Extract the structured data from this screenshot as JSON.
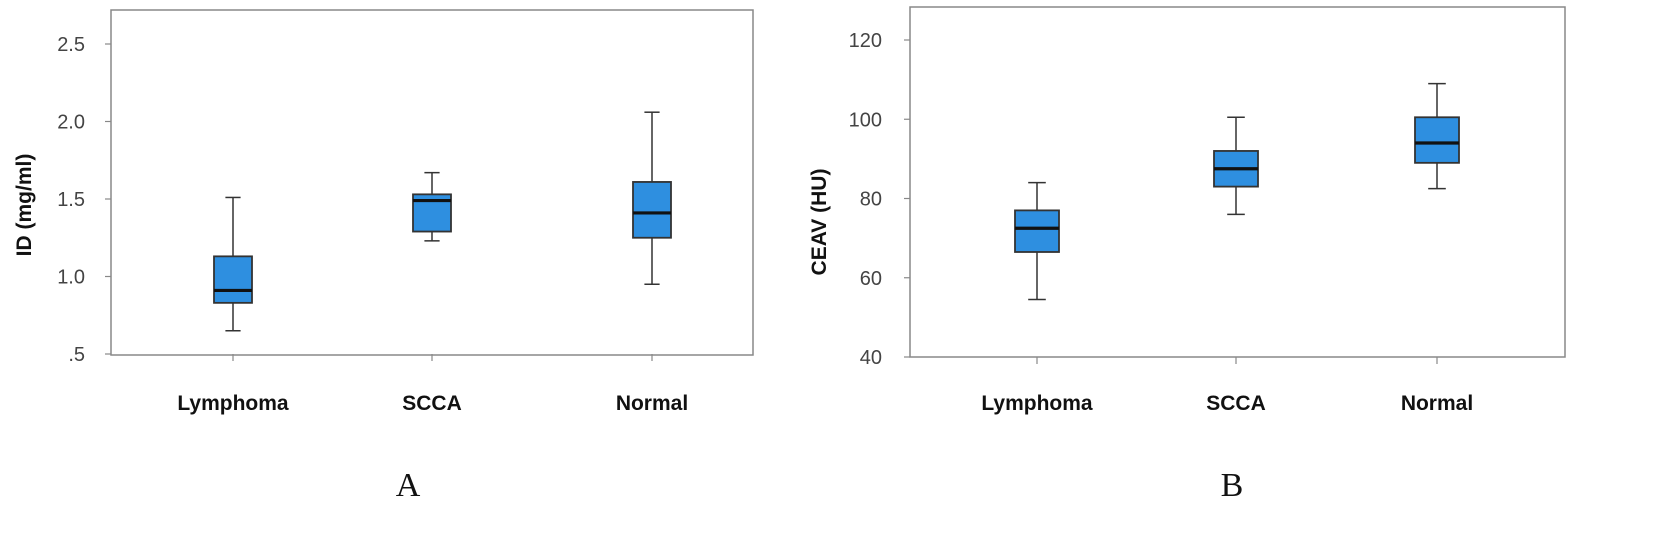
{
  "chart_data": [
    {
      "type": "boxplot",
      "panel_label": "A",
      "title": "",
      "xlabel": "",
      "ylabel": "ID (mg/ml)",
      "ylim": [
        0.5,
        2.7
      ],
      "yticks": [
        0.5,
        1.0,
        1.5,
        2.0,
        2.5
      ],
      "ytick_labels": [
        ".5",
        "1.0",
        "1.5",
        "2.0",
        "2.5"
      ],
      "categories": [
        "Lymphoma",
        "SCCA",
        "Normal"
      ],
      "boxes": [
        {
          "category": "Lymphoma",
          "min": 0.65,
          "q1": 0.83,
          "median": 0.91,
          "q3": 1.13,
          "max": 1.51
        },
        {
          "category": "SCCA",
          "min": 1.23,
          "q1": 1.29,
          "median": 1.49,
          "q3": 1.53,
          "max": 1.67
        },
        {
          "category": "Normal",
          "min": 0.95,
          "q1": 1.25,
          "median": 1.41,
          "q3": 1.61,
          "max": 2.06
        }
      ],
      "colors": {
        "box_fill": "#2e8fe0",
        "line": "#333333",
        "median": "#111111"
      }
    },
    {
      "type": "boxplot",
      "panel_label": "B",
      "title": "",
      "xlabel": "",
      "ylabel": "CEAV (HU)",
      "ylim": [
        40,
        128
      ],
      "yticks": [
        40,
        60,
        80,
        100,
        120
      ],
      "ytick_labels": [
        "40",
        "60",
        "80",
        "100",
        "120"
      ],
      "categories": [
        "Lymphoma",
        "SCCA",
        "Normal"
      ],
      "boxes": [
        {
          "category": "Lymphoma",
          "min": 54.5,
          "q1": 66.5,
          "median": 72.5,
          "q3": 77.0,
          "max": 84.0
        },
        {
          "category": "SCCA",
          "min": 76.0,
          "q1": 83.0,
          "median": 87.5,
          "q3": 92.0,
          "max": 100.5
        },
        {
          "category": "Normal",
          "min": 82.5,
          "q1": 89.0,
          "median": 94.0,
          "q3": 100.5,
          "max": 109.0
        }
      ],
      "colors": {
        "box_fill": "#2e8fe0",
        "line": "#333333",
        "median": "#111111"
      }
    }
  ]
}
